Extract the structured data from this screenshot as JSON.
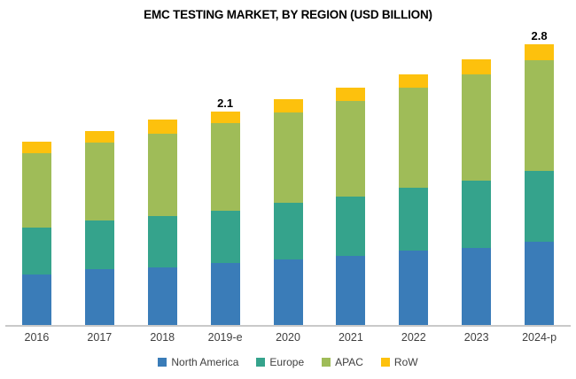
{
  "chart_data": {
    "type": "bar",
    "stacked": true,
    "title": "EMC TESTING MARKET, BY REGION (USD BILLION)",
    "xlabel": "",
    "ylabel": "",
    "ylim": [
      0,
      3.0
    ],
    "grid": false,
    "legend_position": "bottom",
    "categories": [
      "2016",
      "2017",
      "2018",
      "2019-e",
      "2020",
      "2021",
      "2022",
      "2023",
      "2024-p"
    ],
    "series": [
      {
        "name": "North America",
        "color": "#3a7cb8",
        "values": [
          0.5,
          0.55,
          0.57,
          0.61,
          0.64,
          0.68,
          0.73,
          0.76,
          0.82
        ]
      },
      {
        "name": "Europe",
        "color": "#35a38c",
        "values": [
          0.46,
          0.48,
          0.5,
          0.51,
          0.56,
          0.58,
          0.62,
          0.66,
          0.69
        ]
      },
      {
        "name": "APAC",
        "color": "#9fbc58",
        "values": [
          0.73,
          0.76,
          0.81,
          0.86,
          0.89,
          0.94,
          0.98,
          1.04,
          1.09
        ]
      },
      {
        "name": "RoW",
        "color": "#fdc10d",
        "values": [
          0.11,
          0.11,
          0.14,
          0.12,
          0.13,
          0.13,
          0.13,
          0.15,
          0.16
        ]
      }
    ],
    "totals": [
      1.8,
      1.9,
      2.02,
      2.1,
      2.22,
      2.33,
      2.46,
      2.61,
      2.76
    ],
    "annotations": {
      "2019-e": "2.1",
      "2024-p": "2.8"
    },
    "axis_line_color": "#c9c9c9",
    "text_color": "#404040"
  }
}
